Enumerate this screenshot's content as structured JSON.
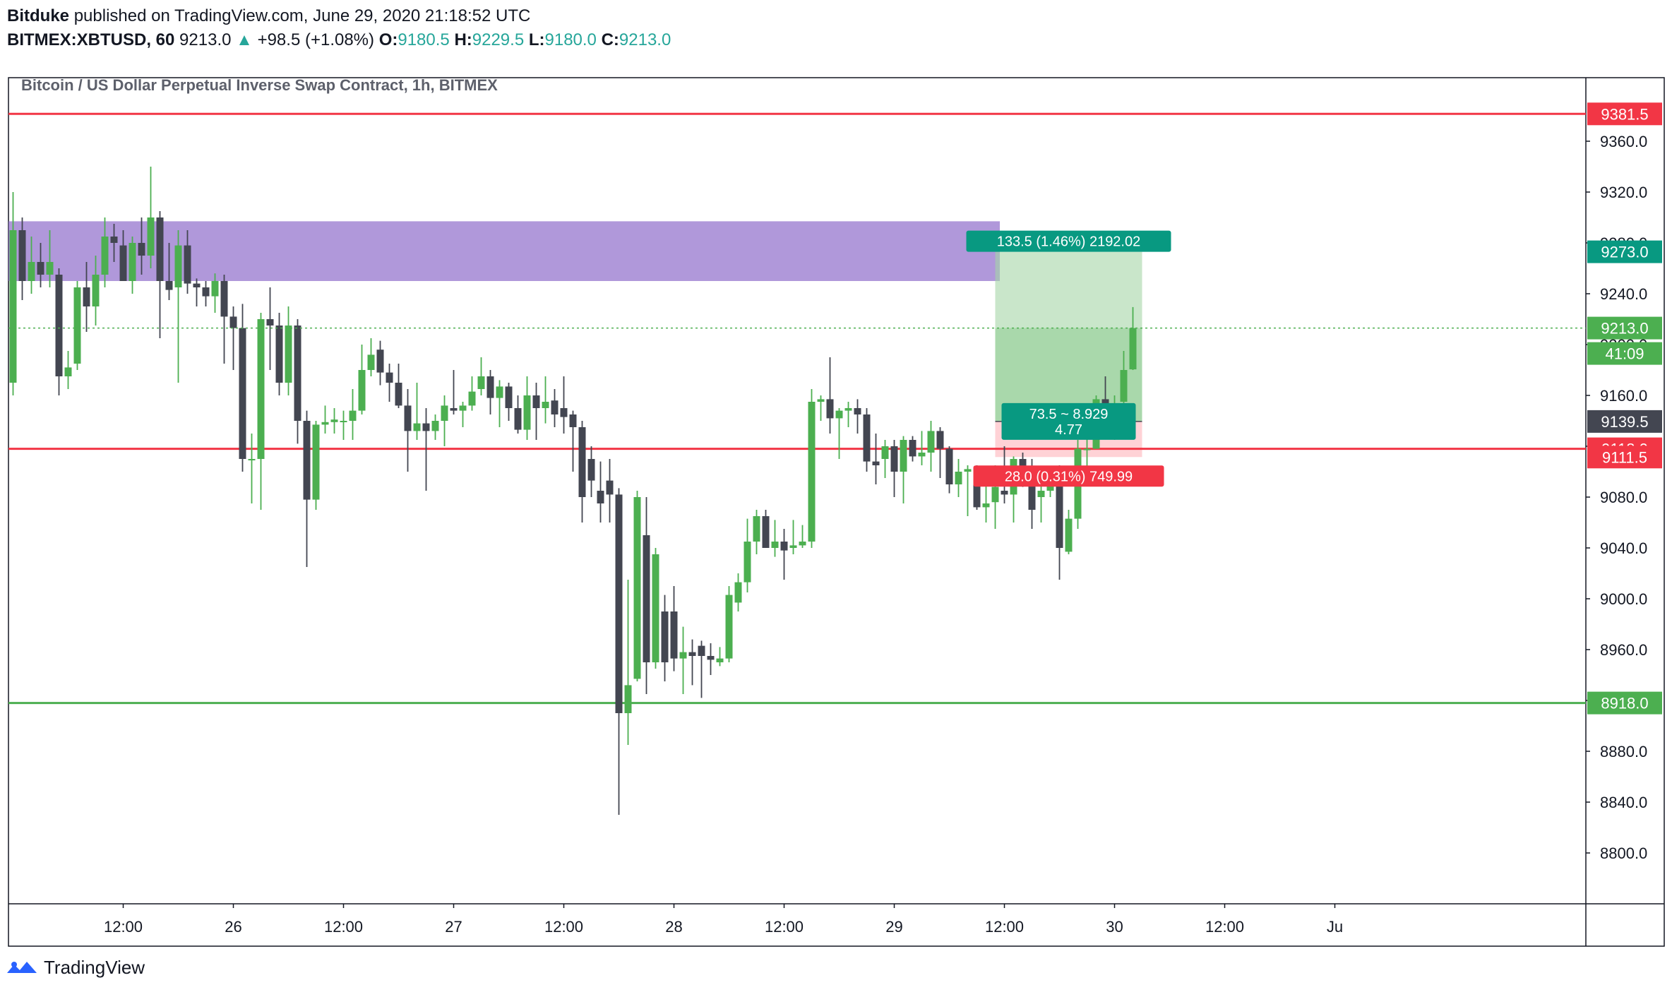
{
  "header": {
    "author": "Bitduke",
    "published": "published on TradingView.com, June 29, 2020 21:18:52 UTC",
    "symbol": "BITMEX:XBTUSD, 60",
    "last": "9213.0",
    "change": "+98.5 (+1.08%)",
    "o_label": "O:",
    "o": "9180.5",
    "h_label": "H:",
    "h": "9229.5",
    "l_label": "L:",
    "l": "9180.0",
    "c_label": "C:",
    "c": "9213.0"
  },
  "footer": {
    "brand": "TradingView"
  },
  "colors": {
    "up": "#4caf50",
    "down": "#434651",
    "resistance": "#f23645",
    "support": "#4caf50",
    "zone": "#9575cd",
    "profit": "#a5d6a7",
    "loss": "#ffcdd2"
  },
  "chart_data": {
    "type": "candlestick",
    "title": "Bitcoin / US Dollar Perpetual Inverse Swap Contract, 1h, BITMEX",
    "ylim": [
      8760,
      9410
    ],
    "y_ticks": [
      8800,
      8840,
      8880,
      8920,
      8960,
      9000,
      9040,
      9080,
      9120,
      9160,
      9200,
      9240,
      9280,
      9320,
      9360
    ],
    "x_ticks": [
      "12:00",
      "26",
      "12:00",
      "27",
      "12:00",
      "28",
      "12:00",
      "29",
      "12:00",
      "30",
      "12:00",
      "Ju"
    ],
    "time_ticks_h": [
      12,
      24,
      36,
      48,
      60,
      72,
      84,
      96,
      108,
      120,
      132,
      144
    ],
    "price_tags": [
      {
        "label": "9381.5",
        "value": 9381.5,
        "color": "#f23645"
      },
      {
        "label": "9360.0",
        "value": 9360,
        "color": "none"
      },
      {
        "label": "9273.0",
        "value": 9273,
        "color": "#089981"
      },
      {
        "label": "9213.0",
        "value": 9213,
        "color": "#4caf50"
      },
      {
        "label": "41:09",
        "value": 9193,
        "color": "#4caf50"
      },
      {
        "label": "9139.5",
        "value": 9139.5,
        "color": "#434651"
      },
      {
        "label": "9118.0",
        "value": 9118,
        "color": "#f23645"
      },
      {
        "label": "9111.5",
        "value": 9111.5,
        "color": "#f23645"
      },
      {
        "label": "8918.0",
        "value": 8918,
        "color": "#4caf50"
      }
    ],
    "hlines": [
      {
        "value": 9381.5,
        "color": "#f23645"
      },
      {
        "value": 9118,
        "color": "#f23645"
      },
      {
        "value": 8918,
        "color": "#4caf50"
      }
    ],
    "zone": {
      "from": 9250,
      "to": 9297,
      "start_h": 0,
      "end_h": 108
    },
    "position": {
      "entry": 9139.5,
      "target": 9273,
      "stop": 9111.5,
      "start_h": 107,
      "end_h": 123,
      "target_label": "133.5 (1.46%) 2192.02",
      "stop_label": "28.0 (0.31%) 749.99",
      "ratio_label1": "73.5 ~ 8.929",
      "ratio_label2": "4.77"
    },
    "last_price": 9213,
    "candles": [
      {
        "o": 9170,
        "h": 9320,
        "l": 9160,
        "c": 9290
      },
      {
        "o": 9290,
        "h": 9300,
        "l": 9235,
        "c": 9250
      },
      {
        "o": 9250,
        "h": 9285,
        "l": 9240,
        "c": 9265
      },
      {
        "o": 9265,
        "h": 9280,
        "l": 9245,
        "c": 9255
      },
      {
        "o": 9255,
        "h": 9290,
        "l": 9245,
        "c": 9265
      },
      {
        "o": 9255,
        "h": 9260,
        "l": 9160,
        "c": 9175
      },
      {
        "o": 9175,
        "h": 9195,
        "l": 9165,
        "c": 9182
      },
      {
        "o": 9185,
        "h": 9250,
        "l": 9180,
        "c": 9245
      },
      {
        "o": 9245,
        "h": 9265,
        "l": 9210,
        "c": 9230
      },
      {
        "o": 9230,
        "h": 9270,
        "l": 9215,
        "c": 9255
      },
      {
        "o": 9255,
        "h": 9300,
        "l": 9245,
        "c": 9285
      },
      {
        "o": 9285,
        "h": 9295,
        "l": 9265,
        "c": 9280
      },
      {
        "o": 9278,
        "h": 9290,
        "l": 9250,
        "c": 9250
      },
      {
        "o": 9250,
        "h": 9285,
        "l": 9240,
        "c": 9280
      },
      {
        "o": 9280,
        "h": 9300,
        "l": 9255,
        "c": 9270
      },
      {
        "o": 9270,
        "h": 9340,
        "l": 9260,
        "c": 9300
      },
      {
        "o": 9300,
        "h": 9305,
        "l": 9205,
        "c": 9250
      },
      {
        "o": 9250,
        "h": 9280,
        "l": 9235,
        "c": 9243
      },
      {
        "o": 9245,
        "h": 9290,
        "l": 9170,
        "c": 9278
      },
      {
        "o": 9278,
        "h": 9290,
        "l": 9240,
        "c": 9248
      },
      {
        "o": 9248,
        "h": 9252,
        "l": 9230,
        "c": 9245
      },
      {
        "o": 9245,
        "h": 9250,
        "l": 9230,
        "c": 9238
      },
      {
        "o": 9238,
        "h": 9256,
        "l": 9225,
        "c": 9250
      },
      {
        "o": 9250,
        "h": 9255,
        "l": 9185,
        "c": 9222
      },
      {
        "o": 9222,
        "h": 9230,
        "l": 9180,
        "c": 9213
      },
      {
        "o": 9213,
        "h": 9232,
        "l": 9100,
        "c": 9110
      },
      {
        "o": 9110,
        "h": 9130,
        "l": 9075,
        "c": 9110
      },
      {
        "o": 9110,
        "h": 9225,
        "l": 9070,
        "c": 9220
      },
      {
        "o": 9220,
        "h": 9245,
        "l": 9180,
        "c": 9215
      },
      {
        "o": 9215,
        "h": 9225,
        "l": 9160,
        "c": 9170
      },
      {
        "o": 9170,
        "h": 9230,
        "l": 9160,
        "c": 9215
      },
      {
        "o": 9215,
        "h": 9220,
        "l": 9122,
        "c": 9140
      },
      {
        "o": 9140,
        "h": 9148,
        "l": 9025,
        "c": 9078
      },
      {
        "o": 9078,
        "h": 9140,
        "l": 9070,
        "c": 9137
      },
      {
        "o": 9137,
        "h": 9152,
        "l": 9130,
        "c": 9139
      },
      {
        "o": 9139,
        "h": 9150,
        "l": 9130,
        "c": 9141
      },
      {
        "o": 9140,
        "h": 9148,
        "l": 9125,
        "c": 9140
      },
      {
        "o": 9140,
        "h": 9165,
        "l": 9125,
        "c": 9148
      },
      {
        "o": 9148,
        "h": 9200,
        "l": 9145,
        "c": 9180
      },
      {
        "o": 9180,
        "h": 9205,
        "l": 9175,
        "c": 9192
      },
      {
        "o": 9196,
        "h": 9203,
        "l": 9168,
        "c": 9178
      },
      {
        "o": 9178,
        "h": 9185,
        "l": 9155,
        "c": 9170
      },
      {
        "o": 9170,
        "h": 9185,
        "l": 9150,
        "c": 9152
      },
      {
        "o": 9152,
        "h": 9165,
        "l": 9100,
        "c": 9132
      },
      {
        "o": 9132,
        "h": 9170,
        "l": 9125,
        "c": 9138
      },
      {
        "o": 9138,
        "h": 9150,
        "l": 9085,
        "c": 9132
      },
      {
        "o": 9132,
        "h": 9145,
        "l": 9125,
        "c": 9140
      },
      {
        "o": 9140,
        "h": 9160,
        "l": 9120,
        "c": 9152
      },
      {
        "o": 9150,
        "h": 9180,
        "l": 9145,
        "c": 9148
      },
      {
        "o": 9148,
        "h": 9155,
        "l": 9135,
        "c": 9152
      },
      {
        "o": 9152,
        "h": 9175,
        "l": 9148,
        "c": 9163
      },
      {
        "o": 9165,
        "h": 9190,
        "l": 9160,
        "c": 9175
      },
      {
        "o": 9175,
        "h": 9180,
        "l": 9145,
        "c": 9158
      },
      {
        "o": 9158,
        "h": 9172,
        "l": 9135,
        "c": 9167
      },
      {
        "o": 9167,
        "h": 9170,
        "l": 9140,
        "c": 9150
      },
      {
        "o": 9150,
        "h": 9160,
        "l": 9130,
        "c": 9133
      },
      {
        "o": 9133,
        "h": 9175,
        "l": 9125,
        "c": 9160
      },
      {
        "o": 9160,
        "h": 9170,
        "l": 9125,
        "c": 9150
      },
      {
        "o": 9150,
        "h": 9175,
        "l": 9138,
        "c": 9155
      },
      {
        "o": 9156,
        "h": 9165,
        "l": 9135,
        "c": 9145
      },
      {
        "o": 9150,
        "h": 9175,
        "l": 9130,
        "c": 9143
      },
      {
        "o": 9145,
        "h": 9148,
        "l": 9100,
        "c": 9135
      },
      {
        "o": 9135,
        "h": 9140,
        "l": 9060,
        "c": 9080
      },
      {
        "o": 9110,
        "h": 9120,
        "l": 9080,
        "c": 9093
      },
      {
        "o": 9085,
        "h": 9108,
        "l": 9060,
        "c": 9075
      },
      {
        "o": 9093,
        "h": 9110,
        "l": 9060,
        "c": 9082
      },
      {
        "o": 9082,
        "h": 9087,
        "l": 8830,
        "c": 8910
      },
      {
        "o": 8910,
        "h": 9015,
        "l": 8885,
        "c": 8932
      },
      {
        "o": 8937,
        "h": 9085,
        "l": 8935,
        "c": 9080
      },
      {
        "o": 9050,
        "h": 9080,
        "l": 8925,
        "c": 8950
      },
      {
        "o": 8950,
        "h": 9040,
        "l": 8945,
        "c": 9035
      },
      {
        "o": 8990,
        "h": 9003,
        "l": 8935,
        "c": 8950
      },
      {
        "o": 8990,
        "h": 9010,
        "l": 8943,
        "c": 8953
      },
      {
        "o": 8953,
        "h": 8978,
        "l": 8925,
        "c": 8958
      },
      {
        "o": 8958,
        "h": 8968,
        "l": 8932,
        "c": 8955
      },
      {
        "o": 8963,
        "h": 8967,
        "l": 8922,
        "c": 8955
      },
      {
        "o": 8955,
        "h": 8965,
        "l": 8940,
        "c": 8952
      },
      {
        "o": 8950,
        "h": 8962,
        "l": 8947,
        "c": 8953
      },
      {
        "o": 8953,
        "h": 9010,
        "l": 8950,
        "c": 9003
      },
      {
        "o": 8997,
        "h": 9020,
        "l": 8990,
        "c": 9013
      },
      {
        "o": 9013,
        "h": 9063,
        "l": 9005,
        "c": 9045
      },
      {
        "o": 9045,
        "h": 9070,
        "l": 9035,
        "c": 9065
      },
      {
        "o": 9065,
        "h": 9070,
        "l": 9040,
        "c": 9040
      },
      {
        "o": 9040,
        "h": 9062,
        "l": 9033,
        "c": 9045
      },
      {
        "o": 9045,
        "h": 9055,
        "l": 9015,
        "c": 9038
      },
      {
        "o": 9040,
        "h": 9062,
        "l": 9035,
        "c": 9042
      },
      {
        "o": 9042,
        "h": 9058,
        "l": 9040,
        "c": 9045
      },
      {
        "o": 9045,
        "h": 9165,
        "l": 9040,
        "c": 9155
      },
      {
        "o": 9155,
        "h": 9160,
        "l": 9140,
        "c": 9157
      },
      {
        "o": 9157,
        "h": 9190,
        "l": 9130,
        "c": 9142
      },
      {
        "o": 9142,
        "h": 9150,
        "l": 9110,
        "c": 9148
      },
      {
        "o": 9148,
        "h": 9155,
        "l": 9135,
        "c": 9150
      },
      {
        "o": 9150,
        "h": 9157,
        "l": 9130,
        "c": 9145
      },
      {
        "o": 9145,
        "h": 9150,
        "l": 9100,
        "c": 9108
      },
      {
        "o": 9108,
        "h": 9130,
        "l": 9090,
        "c": 9105
      },
      {
        "o": 9110,
        "h": 9125,
        "l": 9095,
        "c": 9120
      },
      {
        "o": 9120,
        "h": 9125,
        "l": 9080,
        "c": 9100
      },
      {
        "o": 9100,
        "h": 9128,
        "l": 9075,
        "c": 9125
      },
      {
        "o": 9125,
        "h": 9128,
        "l": 9108,
        "c": 9112
      },
      {
        "o": 9112,
        "h": 9132,
        "l": 9105,
        "c": 9115
      },
      {
        "o": 9115,
        "h": 9140,
        "l": 9100,
        "c": 9132
      },
      {
        "o": 9132,
        "h": 9135,
        "l": 9095,
        "c": 9118
      },
      {
        "o": 9118,
        "h": 9120,
        "l": 9083,
        "c": 9090
      },
      {
        "o": 9090,
        "h": 9110,
        "l": 9080,
        "c": 9100
      },
      {
        "o": 9100,
        "h": 9105,
        "l": 9065,
        "c": 9102
      },
      {
        "o": 9102,
        "h": 9105,
        "l": 9070,
        "c": 9072
      },
      {
        "o": 9072,
        "h": 9090,
        "l": 9060,
        "c": 9075
      },
      {
        "o": 9076,
        "h": 9105,
        "l": 9055,
        "c": 9088
      },
      {
        "o": 9085,
        "h": 9120,
        "l": 9075,
        "c": 9082
      },
      {
        "o": 9082,
        "h": 9112,
        "l": 9060,
        "c": 9110
      },
      {
        "o": 9110,
        "h": 9115,
        "l": 9088,
        "c": 9095
      },
      {
        "o": 9097,
        "h": 9110,
        "l": 9055,
        "c": 9070
      },
      {
        "o": 9080,
        "h": 9100,
        "l": 9060,
        "c": 9085
      },
      {
        "o": 9085,
        "h": 9100,
        "l": 9080,
        "c": 9095
      },
      {
        "o": 9095,
        "h": 9105,
        "l": 9015,
        "c": 9040
      },
      {
        "o": 9037,
        "h": 9070,
        "l": 9035,
        "c": 9063
      },
      {
        "o": 9063,
        "h": 9125,
        "l": 9055,
        "c": 9118
      },
      {
        "o": 9118,
        "h": 9150,
        "l": 9100,
        "c": 9118
      },
      {
        "o": 9118,
        "h": 9160,
        "l": 9118,
        "c": 9157
      },
      {
        "o": 9157,
        "h": 9175,
        "l": 9130,
        "c": 9140
      },
      {
        "o": 9140,
        "h": 9160,
        "l": 9125,
        "c": 9152
      },
      {
        "o": 9155,
        "h": 9195,
        "l": 9150,
        "c": 9180
      },
      {
        "o": 9180.5,
        "h": 9229.5,
        "l": 9180,
        "c": 9213
      }
    ]
  }
}
